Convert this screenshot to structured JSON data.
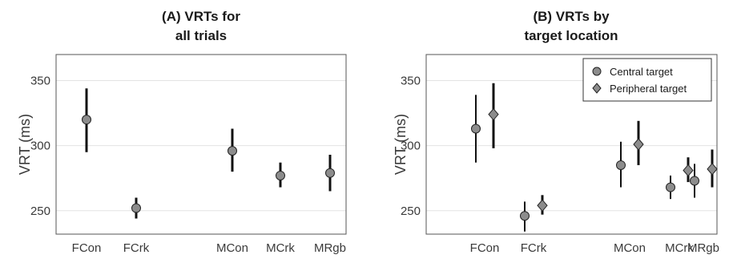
{
  "chart_data": [
    {
      "type": "errorbar",
      "title_prefix": "(A)",
      "title_line1": "VRTs for",
      "title_line2": "all trials",
      "ylabel": "VRT (ms)",
      "ylim": [
        232,
        370
      ],
      "yticks": [
        250,
        300,
        350
      ],
      "grid": true,
      "categories": [
        "FCon",
        "FCrk",
        "MCon",
        "MCrk",
        "MRgb"
      ],
      "series": [
        {
          "marker": "circle",
          "points": [
            {
              "category": "FCon",
              "y": 320,
              "low": 295,
              "high": 344
            },
            {
              "category": "FCrk",
              "y": 252,
              "low": 244,
              "high": 260
            },
            {
              "category": "MCon",
              "y": 296,
              "low": 280,
              "high": 313
            },
            {
              "category": "MCrk",
              "y": 277,
              "low": 268,
              "high": 287
            },
            {
              "category": "MRgb",
              "y": 279,
              "low": 265,
              "high": 293
            }
          ]
        }
      ]
    },
    {
      "type": "errorbar",
      "title_prefix": "(B)",
      "title_line1": "VRTs by",
      "title_line2": "target location",
      "ylabel": "VRT (ms)",
      "ylim": [
        232,
        370
      ],
      "yticks": [
        250,
        300,
        350
      ],
      "grid": true,
      "legend_position": "top-right",
      "categories": [
        "FCon",
        "FCrk",
        "MCon",
        "MCrk",
        "MRgb"
      ],
      "series": [
        {
          "name": "Central target",
          "marker": "circle",
          "points": [
            {
              "category": "FCon",
              "y": 313,
              "low": 287,
              "high": 339
            },
            {
              "category": "FCrk",
              "y": 246,
              "low": 234,
              "high": 257
            },
            {
              "category": "MCon",
              "y": 285,
              "low": 268,
              "high": 303
            },
            {
              "category": "MCrk",
              "y": 268,
              "low": 259,
              "high": 277
            },
            {
              "category": "MRgb",
              "y": 273,
              "low": 260,
              "high": 286
            }
          ]
        },
        {
          "name": "Peripheral target",
          "marker": "diamond",
          "points": [
            {
              "category": "FCon",
              "y": 324,
              "low": 298,
              "high": 348
            },
            {
              "category": "FCrk",
              "y": 254,
              "low": 247,
              "high": 262
            },
            {
              "category": "MCon",
              "y": 301,
              "low": 285,
              "high": 319
            },
            {
              "category": "MCrk",
              "y": 281,
              "low": 272,
              "high": 291
            },
            {
              "category": "MRgb",
              "y": 282,
              "low": 268,
              "high": 297
            }
          ]
        }
      ]
    }
  ],
  "colors": {
    "marker_fill": "#8c8c8c",
    "marker_stroke": "#222222",
    "errorbar": "#111111",
    "grid": "#e3e3e3",
    "frame": "#555555"
  }
}
